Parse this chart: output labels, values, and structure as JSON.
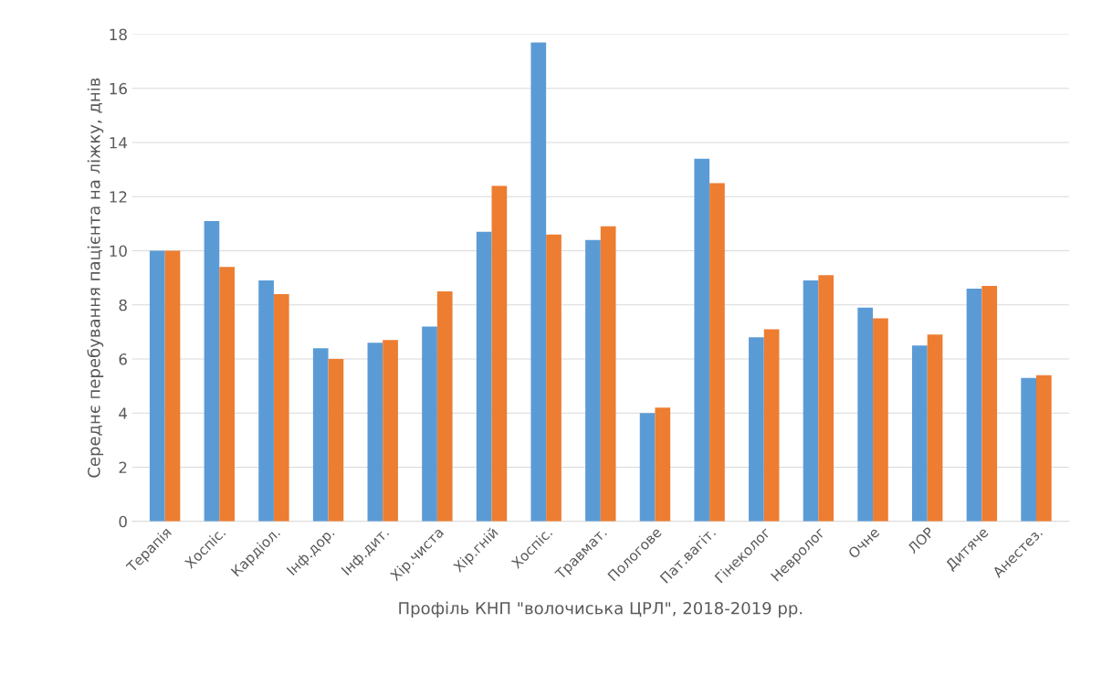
{
  "chart_data": {
    "type": "bar",
    "xlabel": "Профіль КНП \"волочиська ЦРЛ\", 2018-2019 рр.",
    "ylabel": "Середнє перебування пацієнта на ліжку, днів",
    "categories": [
      "Терапія",
      "Хоспіс.",
      "Кардіол.",
      "Інф.дор.",
      "Інф.дит.",
      "Хір.чиста",
      "Хір.гній",
      "Хоспіс.",
      "Травмат.",
      "Пологове",
      "Пат.вагіт.",
      "Гінеколог",
      "Невролог",
      "Очне",
      "ЛОР",
      "Дитяче",
      "Анестез."
    ],
    "series": [
      {
        "color": "#5b9bd5",
        "values": [
          10.0,
          11.1,
          8.9,
          6.4,
          6.6,
          7.2,
          10.7,
          17.7,
          10.4,
          4.0,
          13.4,
          6.8,
          8.9,
          7.9,
          6.5,
          8.6,
          5.3
        ]
      },
      {
        "color": "#ed7d31",
        "values": [
          10.0,
          9.4,
          8.4,
          6.0,
          6.7,
          8.5,
          12.4,
          10.6,
          10.9,
          4.2,
          12.5,
          7.1,
          9.1,
          7.5,
          6.9,
          8.7,
          5.4
        ]
      }
    ],
    "ylim": [
      0,
      18
    ],
    "yticks": [
      0,
      2,
      4,
      6,
      8,
      10,
      12,
      14,
      16,
      18
    ],
    "grid": "y"
  }
}
